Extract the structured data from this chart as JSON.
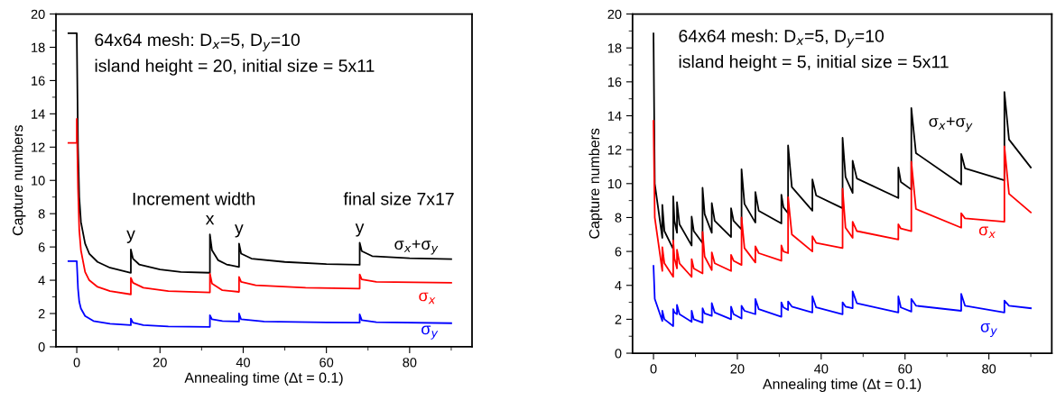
{
  "chart_data": [
    {
      "type": "line",
      "xlabel": "Annealing time (Δt = 0.1)",
      "ylabel": "Capture numbers",
      "xlim": [
        -5,
        95
      ],
      "ylim": [
        0,
        20
      ],
      "xticks": [
        0,
        20,
        40,
        60,
        80
      ],
      "yticks": [
        0,
        2,
        4,
        6,
        8,
        10,
        12,
        14,
        16,
        18,
        20
      ],
      "grid": false,
      "legend": false,
      "marker": "none",
      "line_style": "solid",
      "annotations": [
        "64x64 mesh: D$_{x}$=5, D$_{y}$=10",
        "island height = 20, initial size = 5x11",
        "Increment width",
        "final size 7x17",
        {
          "text": "y",
          "x": 13,
          "y": 5.85
        },
        {
          "text": "x",
          "x": 32,
          "y": 6.75
        },
        {
          "text": "y",
          "x": 39,
          "y": 6.2
        },
        {
          "text": "y",
          "x": 68,
          "y": 6.25
        }
      ],
      "series": [
        {
          "name": "σ$_{x}$+σ$_{y}$",
          "color": "#000000",
          "x": [
            -2,
            0,
            0.3,
            0.6,
            1,
            2,
            3,
            5,
            8,
            13,
            13,
            13.5,
            15,
            20,
            25,
            32,
            32,
            32.5,
            34,
            36,
            39,
            39,
            39.5,
            42,
            50,
            60,
            68,
            68,
            68.5,
            71,
            80,
            90
          ],
          "values": [
            18.85,
            18.85,
            12,
            9,
            7.5,
            6.2,
            5.6,
            5.1,
            4.75,
            4.45,
            5.85,
            5.3,
            4.95,
            4.65,
            4.5,
            4.45,
            6.75,
            5.8,
            5.2,
            4.95,
            4.8,
            6.2,
            5.6,
            5.3,
            5.1,
            4.97,
            4.93,
            6.25,
            5.75,
            5.45,
            5.32,
            5.27
          ]
        },
        {
          "name": "σ$_{x}$",
          "color": "#ff0000",
          "x": [
            -2,
            0,
            0,
            0.3,
            0.6,
            1,
            2,
            3,
            5,
            8,
            13,
            13,
            13.5,
            16,
            22,
            32,
            32,
            32.5,
            35,
            39,
            39,
            39.5,
            43,
            55,
            68,
            68,
            68.5,
            72,
            90
          ],
          "values": [
            12.25,
            12.25,
            13.7,
            9.5,
            7,
            5.8,
            4.5,
            4,
            3.6,
            3.35,
            3.15,
            4.15,
            3.85,
            3.55,
            3.35,
            3.27,
            4.4,
            3.8,
            3.4,
            3.3,
            4.2,
            3.9,
            3.7,
            3.55,
            3.5,
            4.35,
            4.05,
            3.9,
            3.85
          ]
        },
        {
          "name": "σ$_{y}$",
          "color": "#0000ff",
          "x": [
            -2,
            0,
            0.3,
            0.6,
            1,
            2,
            4,
            8,
            13,
            13,
            13.5,
            16,
            22,
            32,
            32,
            32.5,
            35,
            39,
            39,
            39.5,
            45,
            60,
            68,
            68,
            68.5,
            72,
            90
          ],
          "values": [
            5.15,
            5.15,
            3.5,
            2.7,
            2.3,
            1.85,
            1.55,
            1.38,
            1.3,
            1.7,
            1.45,
            1.3,
            1.22,
            1.2,
            1.9,
            1.65,
            1.55,
            1.52,
            2.0,
            1.65,
            1.52,
            1.47,
            1.45,
            1.95,
            1.6,
            1.48,
            1.42
          ]
        }
      ]
    },
    {
      "type": "line",
      "xlabel": "Annealing time (Δt = 0.1)",
      "ylabel": "Capture numbers",
      "xlim": [
        -5,
        95
      ],
      "ylim": [
        0,
        20
      ],
      "xticks": [
        0,
        20,
        40,
        60,
        80
      ],
      "yticks": [
        0,
        2,
        4,
        6,
        8,
        10,
        12,
        14,
        16,
        18,
        20
      ],
      "grid": false,
      "legend": false,
      "marker": "none",
      "line_style": "solid",
      "annotations": [
        "64x64 mesh: D$_{x}$=5, D$_{y}$=10",
        "island height = 5, initial size = 5x11"
      ],
      "series": [
        {
          "name": "σ$_{x}$+σ$_{y}$",
          "color": "#000000",
          "x": [
            0,
            0.3,
            2.1,
            2.1,
            2.6,
            4.7,
            4.7,
            5.0,
            5.6,
            5.6,
            6.2,
            9.1,
            9.1,
            9.6,
            11.7,
            11.7,
            12.2,
            13.9,
            13.9,
            14.6,
            18.5,
            18.5,
            19.1,
            21,
            21,
            21.7,
            24.3,
            24.3,
            25.1,
            30.5,
            30.5,
            31.0,
            32.1,
            32.1,
            33.0,
            37.9,
            37.9,
            38.8,
            45.1,
            45.1,
            45.8,
            47.5,
            47.5,
            48.5,
            58.4,
            58.4,
            59.0,
            61.5,
            61.5,
            62.6,
            73.4,
            73.4,
            74.3,
            83.7,
            83.7,
            84.8,
            90
          ],
          "values": [
            18.85,
            10,
            6.8,
            8.75,
            7.2,
            6.15,
            9.25,
            7.8,
            7.1,
            8.9,
            7.6,
            6.35,
            8.05,
            7.2,
            6.5,
            9.75,
            8.2,
            7.1,
            8.85,
            7.8,
            6.85,
            8.55,
            7.8,
            7.3,
            10.85,
            8.8,
            7.7,
            9.5,
            8.4,
            7.65,
            9.35,
            8.6,
            8.25,
            12.25,
            9.8,
            8.4,
            10.25,
            9.3,
            8.55,
            12.7,
            10.4,
            9.45,
            11.35,
            10.3,
            9.15,
            10.95,
            10.1,
            9.65,
            14.45,
            11.8,
            9.95,
            11.75,
            10.9,
            10.2,
            15.4,
            12.6,
            10.95
          ]
        },
        {
          "name": "σ$_{x}$",
          "color": "#ff0000",
          "x": [
            0,
            0.3,
            2.1,
            2.1,
            2.6,
            4.7,
            4.7,
            5.0,
            5.6,
            5.6,
            6.2,
            9.1,
            9.1,
            9.6,
            11.7,
            11.7,
            12.2,
            13.9,
            13.9,
            14.6,
            18.5,
            18.5,
            19.1,
            21,
            21,
            21.7,
            24.3,
            24.3,
            25.1,
            30.5,
            30.5,
            31.0,
            32.1,
            32.1,
            33.0,
            37.9,
            37.9,
            38.8,
            45.1,
            45.1,
            45.8,
            47.5,
            47.5,
            48.5,
            58.4,
            58.4,
            59.0,
            61.5,
            61.5,
            62.6,
            73.4,
            73.4,
            74.3,
            83.7,
            83.7,
            84.8,
            90
          ],
          "values": [
            13.7,
            8,
            4.85,
            6.25,
            5.3,
            4.5,
            6.65,
            5.6,
            5.0,
            6.1,
            5.3,
            4.5,
            5.55,
            5.0,
            4.7,
            7.15,
            5.7,
            4.9,
            5.95,
            5.3,
            4.85,
            5.8,
            5.45,
            5.2,
            8.0,
            6.2,
            5.35,
            6.3,
            5.9,
            5.45,
            6.35,
            6.0,
            5.9,
            9.2,
            7.0,
            6.0,
            6.9,
            6.5,
            6.2,
            9.7,
            7.4,
            6.8,
            7.75,
            7.2,
            6.7,
            7.6,
            7.35,
            7.2,
            11.3,
            8.5,
            7.4,
            8.25,
            7.95,
            7.75,
            12.2,
            9.4,
            8.3
          ]
        },
        {
          "name": "σ$_{y}$",
          "color": "#0000ff",
          "x": [
            0,
            0.3,
            2.1,
            2.1,
            2.6,
            4.7,
            4.7,
            5.0,
            5.6,
            5.6,
            6.2,
            9.1,
            9.1,
            9.6,
            11.7,
            11.7,
            12.2,
            13.9,
            13.9,
            14.6,
            18.5,
            18.5,
            19.1,
            21,
            21,
            21.7,
            24.3,
            24.3,
            25.1,
            30.5,
            30.5,
            31.0,
            32.1,
            32.1,
            33.0,
            37.9,
            37.9,
            38.8,
            45.1,
            45.1,
            45.8,
            47.5,
            47.5,
            48.5,
            58.4,
            58.4,
            59.0,
            61.5,
            61.5,
            62.6,
            73.4,
            73.4,
            74.3,
            83.7,
            83.7,
            84.8,
            90
          ],
          "values": [
            5.15,
            3.2,
            1.9,
            2.5,
            2.0,
            1.6,
            2.6,
            2.4,
            2.3,
            2.85,
            2.3,
            1.85,
            2.5,
            2.0,
            1.8,
            2.65,
            2.35,
            2.2,
            2.95,
            2.4,
            2.0,
            2.75,
            2.3,
            2.05,
            2.8,
            2.5,
            2.3,
            3.2,
            2.6,
            2.15,
            3.0,
            2.7,
            2.55,
            3.05,
            2.75,
            2.4,
            3.35,
            2.7,
            2.3,
            3.0,
            2.75,
            2.65,
            3.65,
            2.95,
            2.4,
            3.35,
            2.7,
            2.45,
            3.2,
            2.8,
            2.5,
            3.5,
            2.8,
            2.4,
            3.1,
            2.8,
            2.65
          ]
        }
      ]
    }
  ]
}
